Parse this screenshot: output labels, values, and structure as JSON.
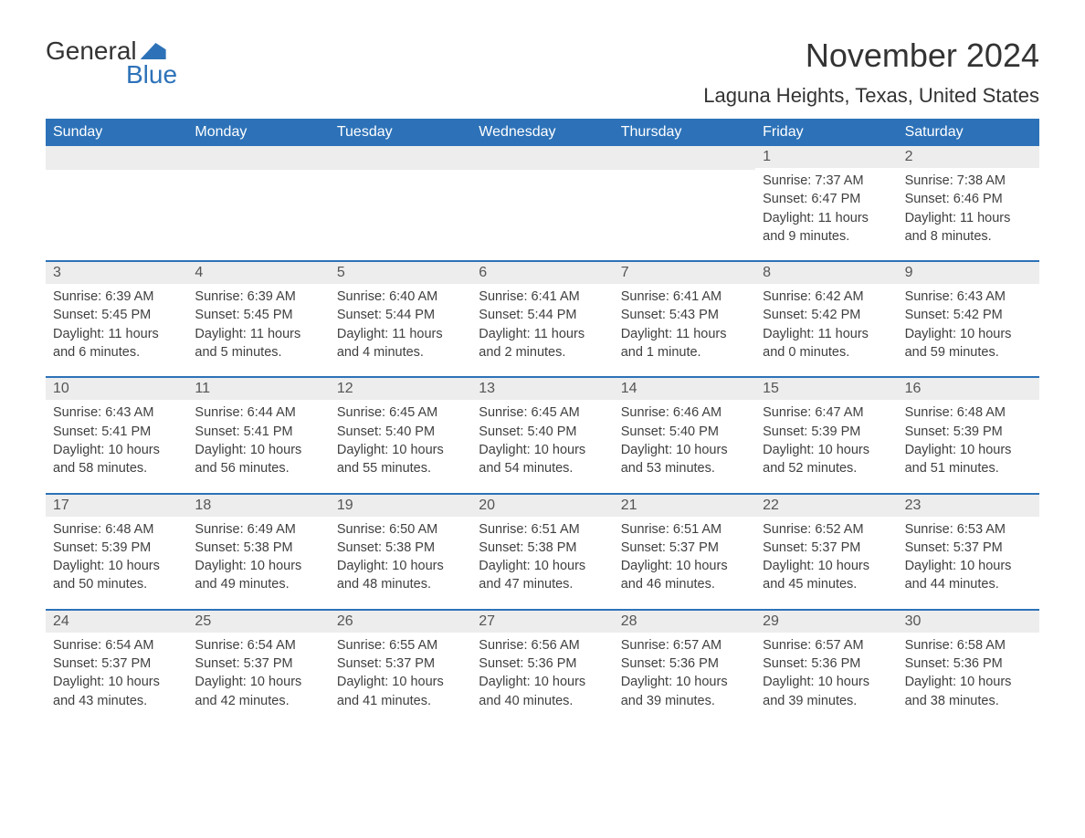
{
  "logo": {
    "text_general": "General",
    "text_blue": "Blue"
  },
  "title": "November 2024",
  "location": "Laguna Heights, Texas, United States",
  "colors": {
    "header_bg": "#2d72b8",
    "header_text": "#ffffff",
    "day_number_bg": "#ededed",
    "row_border": "#2d72b8",
    "text": "#333333",
    "detail_text": "#404040"
  },
  "typography": {
    "title_fontsize": 36,
    "location_fontsize": 22,
    "weekday_fontsize": 16,
    "daynum_fontsize": 16,
    "detail_fontsize": 14.5
  },
  "weekdays": [
    "Sunday",
    "Monday",
    "Tuesday",
    "Wednesday",
    "Thursday",
    "Friday",
    "Saturday"
  ],
  "weeks": [
    [
      null,
      null,
      null,
      null,
      null,
      {
        "n": "1",
        "sunrise": "Sunrise: 7:37 AM",
        "sunset": "Sunset: 6:47 PM",
        "daylight": "Daylight: 11 hours and 9 minutes."
      },
      {
        "n": "2",
        "sunrise": "Sunrise: 7:38 AM",
        "sunset": "Sunset: 6:46 PM",
        "daylight": "Daylight: 11 hours and 8 minutes."
      }
    ],
    [
      {
        "n": "3",
        "sunrise": "Sunrise: 6:39 AM",
        "sunset": "Sunset: 5:45 PM",
        "daylight": "Daylight: 11 hours and 6 minutes."
      },
      {
        "n": "4",
        "sunrise": "Sunrise: 6:39 AM",
        "sunset": "Sunset: 5:45 PM",
        "daylight": "Daylight: 11 hours and 5 minutes."
      },
      {
        "n": "5",
        "sunrise": "Sunrise: 6:40 AM",
        "sunset": "Sunset: 5:44 PM",
        "daylight": "Daylight: 11 hours and 4 minutes."
      },
      {
        "n": "6",
        "sunrise": "Sunrise: 6:41 AM",
        "sunset": "Sunset: 5:44 PM",
        "daylight": "Daylight: 11 hours and 2 minutes."
      },
      {
        "n": "7",
        "sunrise": "Sunrise: 6:41 AM",
        "sunset": "Sunset: 5:43 PM",
        "daylight": "Daylight: 11 hours and 1 minute."
      },
      {
        "n": "8",
        "sunrise": "Sunrise: 6:42 AM",
        "sunset": "Sunset: 5:42 PM",
        "daylight": "Daylight: 11 hours and 0 minutes."
      },
      {
        "n": "9",
        "sunrise": "Sunrise: 6:43 AM",
        "sunset": "Sunset: 5:42 PM",
        "daylight": "Daylight: 10 hours and 59 minutes."
      }
    ],
    [
      {
        "n": "10",
        "sunrise": "Sunrise: 6:43 AM",
        "sunset": "Sunset: 5:41 PM",
        "daylight": "Daylight: 10 hours and 58 minutes."
      },
      {
        "n": "11",
        "sunrise": "Sunrise: 6:44 AM",
        "sunset": "Sunset: 5:41 PM",
        "daylight": "Daylight: 10 hours and 56 minutes."
      },
      {
        "n": "12",
        "sunrise": "Sunrise: 6:45 AM",
        "sunset": "Sunset: 5:40 PM",
        "daylight": "Daylight: 10 hours and 55 minutes."
      },
      {
        "n": "13",
        "sunrise": "Sunrise: 6:45 AM",
        "sunset": "Sunset: 5:40 PM",
        "daylight": "Daylight: 10 hours and 54 minutes."
      },
      {
        "n": "14",
        "sunrise": "Sunrise: 6:46 AM",
        "sunset": "Sunset: 5:40 PM",
        "daylight": "Daylight: 10 hours and 53 minutes."
      },
      {
        "n": "15",
        "sunrise": "Sunrise: 6:47 AM",
        "sunset": "Sunset: 5:39 PM",
        "daylight": "Daylight: 10 hours and 52 minutes."
      },
      {
        "n": "16",
        "sunrise": "Sunrise: 6:48 AM",
        "sunset": "Sunset: 5:39 PM",
        "daylight": "Daylight: 10 hours and 51 minutes."
      }
    ],
    [
      {
        "n": "17",
        "sunrise": "Sunrise: 6:48 AM",
        "sunset": "Sunset: 5:39 PM",
        "daylight": "Daylight: 10 hours and 50 minutes."
      },
      {
        "n": "18",
        "sunrise": "Sunrise: 6:49 AM",
        "sunset": "Sunset: 5:38 PM",
        "daylight": "Daylight: 10 hours and 49 minutes."
      },
      {
        "n": "19",
        "sunrise": "Sunrise: 6:50 AM",
        "sunset": "Sunset: 5:38 PM",
        "daylight": "Daylight: 10 hours and 48 minutes."
      },
      {
        "n": "20",
        "sunrise": "Sunrise: 6:51 AM",
        "sunset": "Sunset: 5:38 PM",
        "daylight": "Daylight: 10 hours and 47 minutes."
      },
      {
        "n": "21",
        "sunrise": "Sunrise: 6:51 AM",
        "sunset": "Sunset: 5:37 PM",
        "daylight": "Daylight: 10 hours and 46 minutes."
      },
      {
        "n": "22",
        "sunrise": "Sunrise: 6:52 AM",
        "sunset": "Sunset: 5:37 PM",
        "daylight": "Daylight: 10 hours and 45 minutes."
      },
      {
        "n": "23",
        "sunrise": "Sunrise: 6:53 AM",
        "sunset": "Sunset: 5:37 PM",
        "daylight": "Daylight: 10 hours and 44 minutes."
      }
    ],
    [
      {
        "n": "24",
        "sunrise": "Sunrise: 6:54 AM",
        "sunset": "Sunset: 5:37 PM",
        "daylight": "Daylight: 10 hours and 43 minutes."
      },
      {
        "n": "25",
        "sunrise": "Sunrise: 6:54 AM",
        "sunset": "Sunset: 5:37 PM",
        "daylight": "Daylight: 10 hours and 42 minutes."
      },
      {
        "n": "26",
        "sunrise": "Sunrise: 6:55 AM",
        "sunset": "Sunset: 5:37 PM",
        "daylight": "Daylight: 10 hours and 41 minutes."
      },
      {
        "n": "27",
        "sunrise": "Sunrise: 6:56 AM",
        "sunset": "Sunset: 5:36 PM",
        "daylight": "Daylight: 10 hours and 40 minutes."
      },
      {
        "n": "28",
        "sunrise": "Sunrise: 6:57 AM",
        "sunset": "Sunset: 5:36 PM",
        "daylight": "Daylight: 10 hours and 39 minutes."
      },
      {
        "n": "29",
        "sunrise": "Sunrise: 6:57 AM",
        "sunset": "Sunset: 5:36 PM",
        "daylight": "Daylight: 10 hours and 39 minutes."
      },
      {
        "n": "30",
        "sunrise": "Sunrise: 6:58 AM",
        "sunset": "Sunset: 5:36 PM",
        "daylight": "Daylight: 10 hours and 38 minutes."
      }
    ]
  ]
}
